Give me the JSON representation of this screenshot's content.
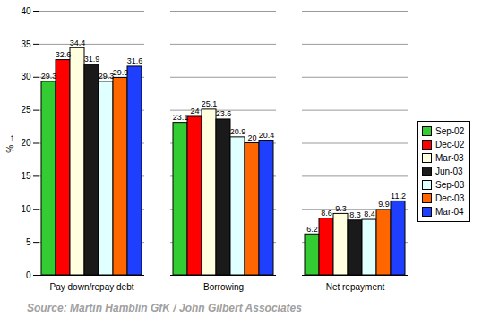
{
  "chart_data": {
    "type": "bar",
    "y_label": "%",
    "caption": "Source: Martin Hamblin GfK / John Gilbert Associates",
    "categories": [
      "Pay down/repay debt",
      "Borrowing",
      "Net repayment"
    ],
    "series": [
      {
        "name": "Sep-02",
        "color": "#33cc33",
        "values": [
          29.3,
          23.1,
          6.2
        ]
      },
      {
        "name": "Dec-02",
        "color": "#ff0000",
        "values": [
          32.6,
          24,
          8.6
        ]
      },
      {
        "name": "Mar-03",
        "color": "#ffffe0",
        "values": [
          34.4,
          25.1,
          9.3
        ]
      },
      {
        "name": "Jun-03",
        "color": "#1a1a1a",
        "values": [
          31.9,
          23.6,
          8.3
        ]
      },
      {
        "name": "Sep-03",
        "color": "#e0ffff",
        "values": [
          29.3,
          20.9,
          8.4
        ]
      },
      {
        "name": "Dec-03",
        "color": "#ff6600",
        "values": [
          29.9,
          20,
          9.9
        ]
      },
      {
        "name": "Mar-04",
        "color": "#1f3fff",
        "values": [
          31.6,
          20.4,
          11.2
        ]
      }
    ],
    "ylim": [
      0,
      40
    ],
    "yticks": [
      0,
      5,
      10,
      15,
      20,
      25,
      30,
      35,
      40
    ],
    "grid": true,
    "legend": "right",
    "data_labels": true
  }
}
